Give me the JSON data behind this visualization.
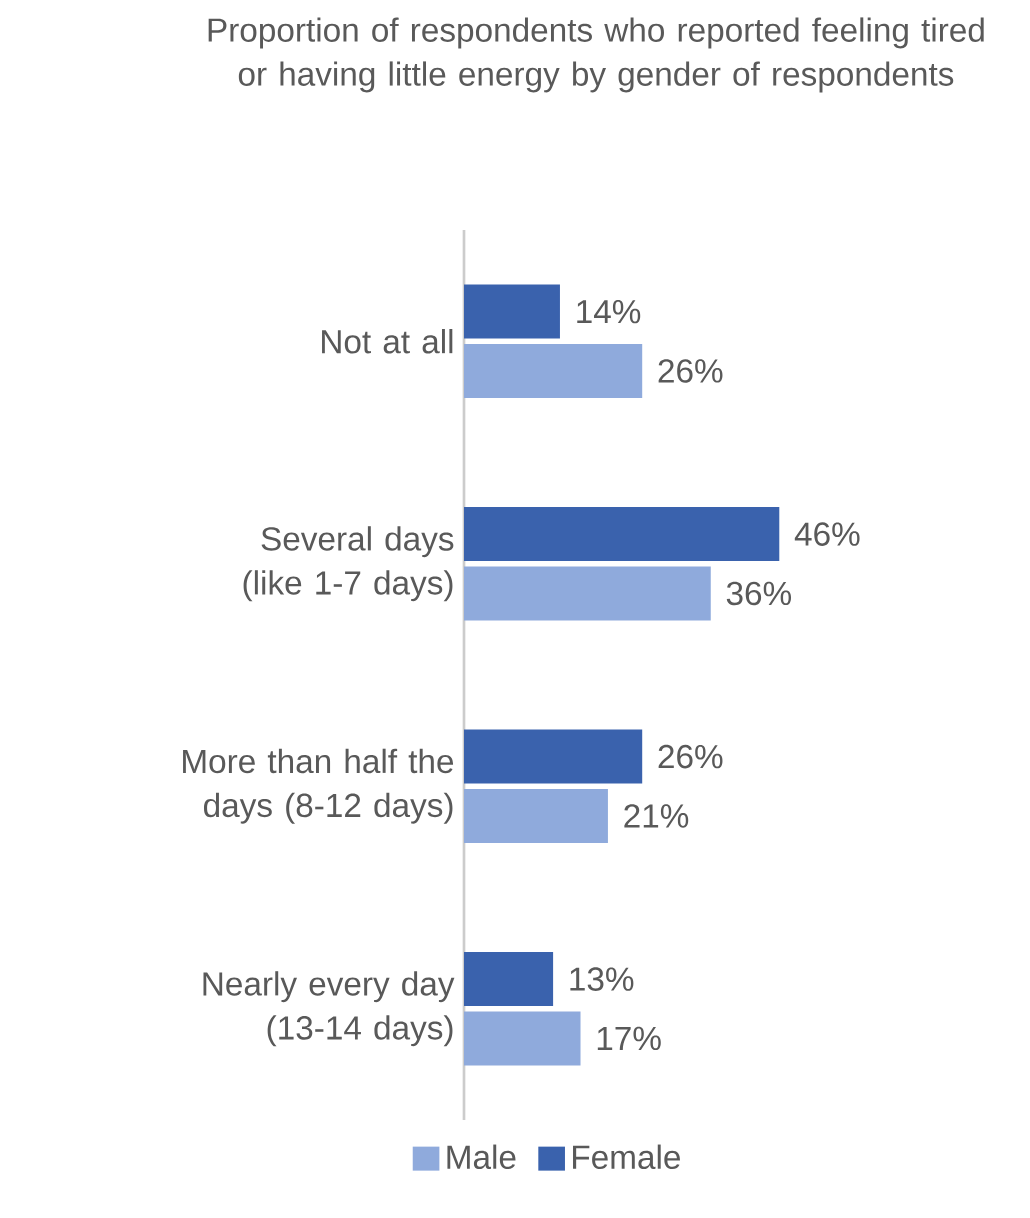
{
  "chart_data": {
    "type": "bar",
    "orientation": "horizontal",
    "title": "Proportion of respondents who reported feeling tired or having little energy by gender of respondents",
    "categories": [
      "Not at all",
      "Several days (like 1-7 days)",
      "More than half the days (8-12 days)",
      "Nearly every day (13-14 days)"
    ],
    "series": [
      {
        "name": "Male",
        "color": "#8faadc",
        "values": [
          26,
          36,
          21,
          17
        ],
        "value_labels": [
          "26%",
          "36%",
          "21%",
          "17%"
        ]
      },
      {
        "name": "Female",
        "color": "#3a62ad",
        "values": [
          14,
          46,
          26,
          13
        ],
        "value_labels": [
          "14%",
          "46%",
          "26%",
          "13%"
        ]
      }
    ],
    "legend": "bottom"
  }
}
